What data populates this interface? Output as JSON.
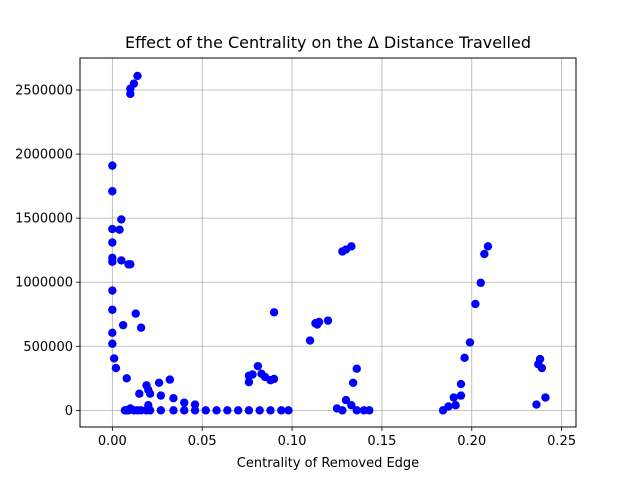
{
  "chart_data": {
    "type": "scatter",
    "title": "Effect of the Centrality on the Δ Distance Travelled",
    "xlabel": "Centrality of Removed Edge",
    "ylabel": "",
    "xlim": [
      -0.018,
      0.258
    ],
    "ylim": [
      -130000,
      2750000
    ],
    "xticks": [
      0.0,
      0.05,
      0.1,
      0.15,
      0.2,
      0.25
    ],
    "xtick_labels": [
      "0.00",
      "0.05",
      "0.10",
      "0.15",
      "0.20",
      "0.25"
    ],
    "yticks": [
      0,
      500000,
      1000000,
      1500000,
      2000000,
      2500000
    ],
    "ytick_labels": [
      "0",
      "500000",
      "1000000",
      "1500000",
      "2000000",
      "2500000"
    ],
    "grid": true,
    "marker_color": "#0000ff",
    "points": [
      [
        0.0,
        1910000
      ],
      [
        0.0,
        1710000
      ],
      [
        0.0,
        1415000
      ],
      [
        0.0,
        1310000
      ],
      [
        0.0,
        1190000
      ],
      [
        0.0,
        1160000
      ],
      [
        0.0,
        935000
      ],
      [
        0.0,
        785000
      ],
      [
        0.0,
        605000
      ],
      [
        0.0,
        520000
      ],
      [
        0.001,
        405000
      ],
      [
        0.002,
        330000
      ],
      [
        0.004,
        1410000
      ],
      [
        0.005,
        1490000
      ],
      [
        0.005,
        1170000
      ],
      [
        0.006,
        665000
      ],
      [
        0.008,
        250000
      ],
      [
        0.009,
        1140000
      ],
      [
        0.01,
        1140000
      ],
      [
        0.01,
        2510000
      ],
      [
        0.01,
        2470000
      ],
      [
        0.012,
        2550000
      ],
      [
        0.014,
        2610000
      ],
      [
        0.013,
        755000
      ],
      [
        0.016,
        645000
      ],
      [
        0.015,
        130000
      ],
      [
        0.019,
        195000
      ],
      [
        0.02,
        160000
      ],
      [
        0.021,
        130000
      ],
      [
        0.02,
        40000
      ],
      [
        0.026,
        215000
      ],
      [
        0.027,
        115000
      ],
      [
        0.032,
        240000
      ],
      [
        0.034,
        95000
      ],
      [
        0.04,
        60000
      ],
      [
        0.046,
        45000
      ],
      [
        0.007,
        0
      ],
      [
        0.008,
        0
      ],
      [
        0.009,
        0
      ],
      [
        0.01,
        15000
      ],
      [
        0.012,
        0
      ],
      [
        0.014,
        0
      ],
      [
        0.016,
        0
      ],
      [
        0.019,
        0
      ],
      [
        0.021,
        0
      ],
      [
        0.027,
        0
      ],
      [
        0.034,
        0
      ],
      [
        0.04,
        0
      ],
      [
        0.046,
        0
      ],
      [
        0.052,
        0
      ],
      [
        0.058,
        0
      ],
      [
        0.064,
        0
      ],
      [
        0.07,
        0
      ],
      [
        0.076,
        0
      ],
      [
        0.082,
        0
      ],
      [
        0.088,
        0
      ],
      [
        0.094,
        0
      ],
      [
        0.098,
        0
      ],
      [
        0.076,
        220000
      ],
      [
        0.076,
        270000
      ],
      [
        0.078,
        280000
      ],
      [
        0.081,
        345000
      ],
      [
        0.083,
        285000
      ],
      [
        0.085,
        260000
      ],
      [
        0.088,
        235000
      ],
      [
        0.09,
        245000
      ],
      [
        0.09,
        765000
      ],
      [
        0.11,
        545000
      ],
      [
        0.113,
        680000
      ],
      [
        0.114,
        670000
      ],
      [
        0.115,
        690000
      ],
      [
        0.12,
        700000
      ],
      [
        0.128,
        1240000
      ],
      [
        0.13,
        1255000
      ],
      [
        0.133,
        1280000
      ],
      [
        0.125,
        15000
      ],
      [
        0.128,
        0
      ],
      [
        0.13,
        80000
      ],
      [
        0.133,
        40000
      ],
      [
        0.134,
        215000
      ],
      [
        0.136,
        325000
      ],
      [
        0.136,
        0
      ],
      [
        0.14,
        0
      ],
      [
        0.143,
        0
      ],
      [
        0.184,
        0
      ],
      [
        0.187,
        30000
      ],
      [
        0.19,
        100000
      ],
      [
        0.191,
        40000
      ],
      [
        0.194,
        115000
      ],
      [
        0.194,
        205000
      ],
      [
        0.196,
        410000
      ],
      [
        0.199,
        530000
      ],
      [
        0.202,
        830000
      ],
      [
        0.205,
        995000
      ],
      [
        0.207,
        1220000
      ],
      [
        0.209,
        1280000
      ],
      [
        0.236,
        45000
      ],
      [
        0.237,
        360000
      ],
      [
        0.238,
        400000
      ],
      [
        0.239,
        330000
      ],
      [
        0.241,
        100000
      ]
    ]
  }
}
